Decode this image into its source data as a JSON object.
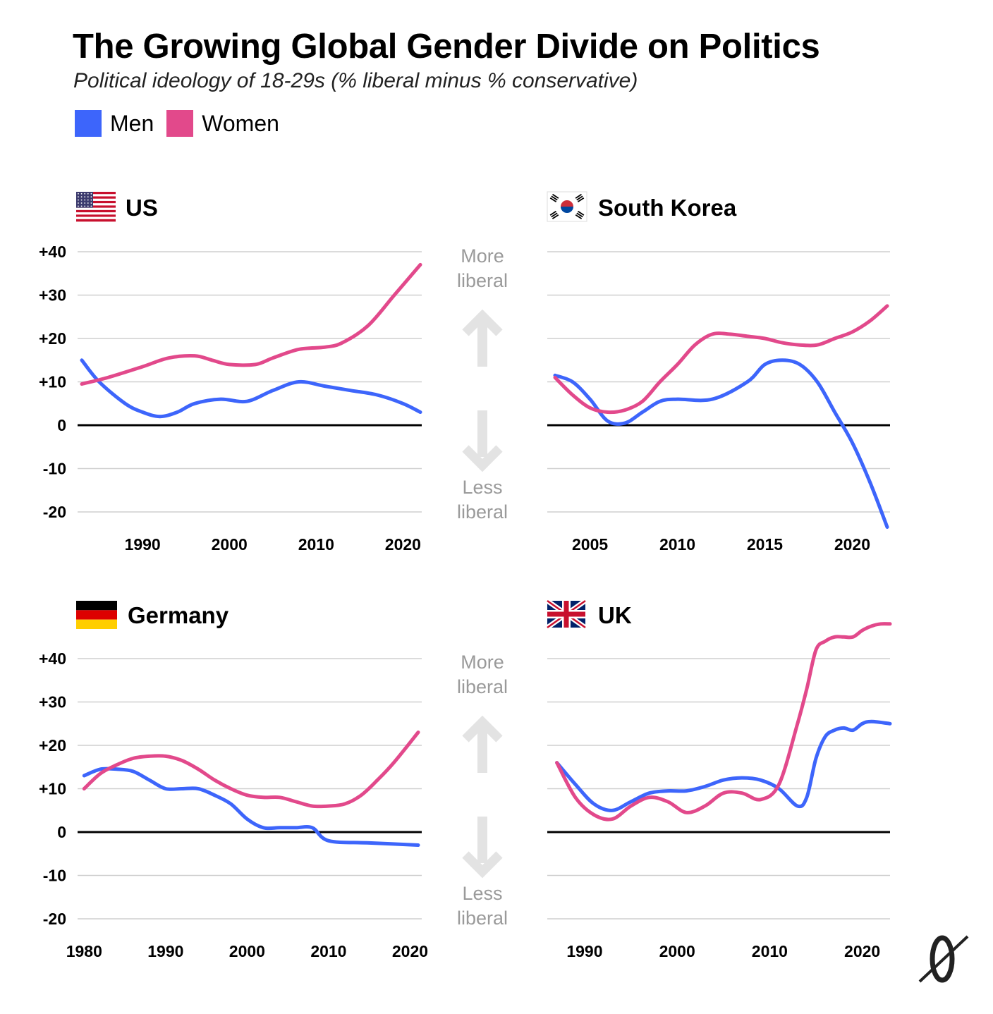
{
  "header": {
    "title": "The Growing Global Gender Divide on Politics",
    "subtitle": "Political ideology of 18-29s (% liberal minus % conservative)"
  },
  "legend": [
    {
      "name": "Men",
      "color": "#3d65fb"
    },
    {
      "name": "Women",
      "color": "#e2498b"
    }
  ],
  "arrows": {
    "up_label_line1": "More",
    "up_label_line2": "liberal",
    "down_label_line1": "Less",
    "down_label_line2": "liberal"
  },
  "chart_data": [
    {
      "type": "line",
      "panel": "US",
      "flag_icon": "us-flag-icon",
      "xticks": [
        1990,
        2000,
        2010,
        2020
      ],
      "xlim": [
        1983,
        2022
      ],
      "ylim": [
        -20,
        40
      ],
      "yticks": [
        "+40",
        "+30",
        "+20",
        "+10",
        "0",
        "-10",
        "-20"
      ],
      "ytick_values": [
        40,
        30,
        20,
        10,
        0,
        -10,
        -20
      ],
      "show_yticks": true,
      "series": [
        {
          "name": "Men",
          "color": "#3d65fb",
          "x": [
            1983,
            1985,
            1988,
            1990,
            1992,
            1994,
            1996,
            1999,
            2002,
            2005,
            2008,
            2011,
            2014,
            2017,
            2020,
            2022
          ],
          "y": [
            15,
            10,
            5,
            3,
            2,
            3,
            5,
            6,
            5.5,
            8,
            10,
            9,
            8,
            7,
            5,
            3
          ]
        },
        {
          "name": "Women",
          "color": "#e2498b",
          "x": [
            1983,
            1986,
            1990,
            1993,
            1996,
            1998,
            2000,
            2003,
            2005,
            2008,
            2011,
            2013,
            2016,
            2019,
            2022
          ],
          "y": [
            9.5,
            11,
            13.5,
            15.5,
            16,
            15,
            14,
            14,
            15.5,
            17.5,
            18,
            19,
            23,
            30,
            37
          ]
        }
      ]
    },
    {
      "type": "line",
      "panel": "South Korea",
      "flag_icon": "south-korea-flag-icon",
      "xticks": [
        2005,
        2010,
        2015,
        2020
      ],
      "xlim": [
        2003,
        2022
      ],
      "ylim": [
        -20,
        40
      ],
      "yticks": [],
      "ytick_values": [
        40,
        30,
        20,
        10,
        0,
        -10,
        -20
      ],
      "show_yticks": false,
      "series": [
        {
          "name": "Men",
          "color": "#3d65fb",
          "x": [
            2003,
            2004,
            2005,
            2006,
            2007,
            2008,
            2009,
            2010,
            2012,
            2014,
            2015,
            2016,
            2017,
            2018,
            2019,
            2020,
            2021,
            2022
          ],
          "y": [
            11.5,
            10,
            6,
            1,
            0.5,
            3,
            5.5,
            6,
            6,
            10,
            14,
            15,
            14,
            10,
            3,
            -4,
            -13,
            -23.5
          ]
        },
        {
          "name": "Women",
          "color": "#e2498b",
          "x": [
            2003,
            2004,
            2005,
            2006,
            2007,
            2008,
            2009,
            2010,
            2011,
            2012,
            2013,
            2014,
            2015,
            2016,
            2017,
            2018,
            2019,
            2020,
            2021,
            2022
          ],
          "y": [
            11,
            7,
            4,
            3,
            3.5,
            5.5,
            10,
            14,
            18.5,
            21,
            21,
            20.5,
            20,
            19,
            18.5,
            18.5,
            20,
            21.5,
            24,
            27.5
          ]
        }
      ]
    },
    {
      "type": "line",
      "panel": "Germany",
      "flag_icon": "germany-flag-icon",
      "xticks": [
        1980,
        1990,
        2000,
        2010,
        2020
      ],
      "xlim": [
        1979.8,
        2021
      ],
      "ylim": [
        -20,
        40
      ],
      "yticks": [
        "+40",
        "+30",
        "+20",
        "+10",
        "0",
        "-10",
        "-20"
      ],
      "ytick_values": [
        40,
        30,
        20,
        10,
        0,
        -10,
        -20
      ],
      "show_yticks": true,
      "series": [
        {
          "name": "Men",
          "color": "#3d65fb",
          "x": [
            1980,
            1982,
            1984,
            1986,
            1988,
            1990,
            1992,
            1994,
            1996,
            1998,
            2000,
            2002,
            2004,
            2006,
            2008,
            2010,
            2015,
            2021
          ],
          "y": [
            13,
            14.5,
            14.5,
            14,
            12,
            10,
            10,
            10,
            8.5,
            6.5,
            3,
            1,
            1,
            1,
            1,
            -2,
            -2.5,
            -3
          ]
        },
        {
          "name": "Women",
          "color": "#e2498b",
          "x": [
            1980,
            1982,
            1984,
            1986,
            1988,
            1990,
            1992,
            1994,
            1996,
            1998,
            2000,
            2002,
            2004,
            2006,
            2008,
            2010,
            2012,
            2014,
            2016,
            2018,
            2021
          ],
          "y": [
            10,
            13.5,
            15.5,
            17,
            17.5,
            17.5,
            16.5,
            14.5,
            12,
            10,
            8.5,
            8,
            8,
            7,
            6,
            6,
            6.5,
            8.5,
            12,
            16,
            23
          ]
        }
      ]
    },
    {
      "type": "line",
      "panel": "UK",
      "flag_icon": "uk-flag-icon",
      "xticks": [
        1990,
        2000,
        2010,
        2020
      ],
      "xlim": [
        1986.5,
        2023
      ],
      "ylim": [
        -20,
        48
      ],
      "yticks": [],
      "ytick_values": [
        40,
        30,
        20,
        10,
        0,
        -10,
        -20
      ],
      "show_yticks": false,
      "series": [
        {
          "name": "Men",
          "color": "#3d65fb",
          "x": [
            1987,
            1989,
            1991,
            1993,
            1995,
            1997,
            1999,
            2001,
            2003,
            2005,
            2007,
            2009,
            2011,
            2013,
            2014,
            2015,
            2016,
            2017,
            2018,
            2019,
            2020,
            2021,
            2023
          ],
          "y": [
            16,
            11,
            6.5,
            5,
            7,
            9,
            9.5,
            9.5,
            10.5,
            12,
            12.5,
            12,
            10,
            6,
            8,
            17,
            22,
            23.5,
            24,
            23.5,
            25,
            25.5,
            25
          ]
        },
        {
          "name": "Women",
          "color": "#e2498b",
          "x": [
            1987,
            1989,
            1991,
            1993,
            1995,
            1997,
            1999,
            2001,
            2003,
            2005,
            2007,
            2009,
            2011,
            2013,
            2014,
            2015,
            2016,
            2017,
            2018,
            2019,
            2020,
            2021,
            2022,
            2023
          ],
          "y": [
            16,
            8,
            4,
            3,
            6,
            8,
            7,
            4.5,
            6,
            9,
            9,
            7.5,
            11,
            25,
            33,
            42,
            44,
            45,
            45,
            45,
            46.5,
            47.5,
            48,
            48
          ]
        }
      ]
    }
  ]
}
